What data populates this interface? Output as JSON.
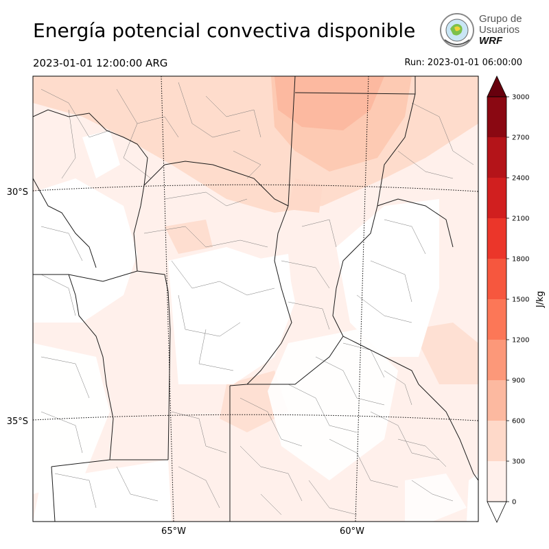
{
  "header": {
    "title": "Energía potencial convectiva disponible",
    "valid_time": "2023-01-01 12:00:00 ARG",
    "run_time": "Run: 2023-01-01 06:00:00"
  },
  "logo": {
    "line1": "Grupo de",
    "line2": "Usuarios",
    "line3": "WRF"
  },
  "map": {
    "lat_labels": [
      "30°S",
      "35°S"
    ],
    "lon_labels": [
      "65°W",
      "60°W"
    ]
  },
  "colorbar": {
    "unit": "J/kg",
    "ticks": [
      0,
      300,
      600,
      900,
      1200,
      1500,
      1800,
      2100,
      2400,
      2700,
      3000
    ],
    "colors": [
      "#fff0eb",
      "#fed9c9",
      "#fcb9a0",
      "#fc9879",
      "#fc7757",
      "#f6573e",
      "#eb362a",
      "#d11f1f",
      "#b41419",
      "#8a0812"
    ],
    "extend_color": "#67000d"
  }
}
